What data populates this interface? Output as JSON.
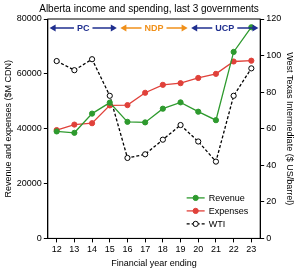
{
  "chart_data": {
    "type": "line",
    "title": "Alberta income and spending, last 3 governments",
    "x_label": "Financial year ending",
    "y_label": "Revenue and expenses ($M CDN)",
    "y2_label": "West Texas Intermediate ($ US/barrel)",
    "x": [
      12,
      13,
      14,
      15,
      16,
      17,
      18,
      19,
      20,
      21,
      22,
      23
    ],
    "xlim": [
      11.5,
      23.5
    ],
    "xticks": [
      12,
      13,
      14,
      15,
      16,
      17,
      18,
      19,
      20,
      21,
      22,
      23
    ],
    "ylim": [
      0,
      80000
    ],
    "yticks": [
      0,
      20000,
      40000,
      60000,
      80000
    ],
    "y2lim": [
      0,
      120
    ],
    "y2ticks": [
      0,
      20,
      40,
      60,
      80,
      100,
      120
    ],
    "grid": false,
    "legend": "lower right",
    "series": [
      {
        "name": "Revenue",
        "color": "#2e9a2e",
        "marker": "circle",
        "line_style": "solid",
        "values": [
          39000,
          38500,
          45500,
          49500,
          42500,
          42300,
          47300,
          49600,
          46200,
          43100,
          68000,
          77000
        ]
      },
      {
        "name": "Expenses",
        "color": "#e0413a",
        "marker": "circle",
        "line_style": "solid",
        "values": [
          39500,
          41500,
          42000,
          48500,
          48600,
          53100,
          56000,
          56600,
          58500,
          60000,
          64500,
          64800
        ]
      },
      {
        "name": "WTI",
        "color": "#000000",
        "marker": "open circle",
        "line_style": "dashed",
        "axis": "y2",
        "values": [
          97,
          92,
          98,
          78,
          44,
          46,
          54,
          62,
          53,
          42,
          78,
          93
        ]
      }
    ],
    "annotations": [
      {
        "text": "PC",
        "x_start": 11.6,
        "x_end": 15.4,
        "color": "#1f2f8f"
      },
      {
        "text": "NDP",
        "x_start": 15.6,
        "x_end": 19.4,
        "color": "#f0901a"
      },
      {
        "text": "UCP",
        "x_start": 19.6,
        "x_end": 23.4,
        "color": "#1f2f8f"
      }
    ]
  }
}
